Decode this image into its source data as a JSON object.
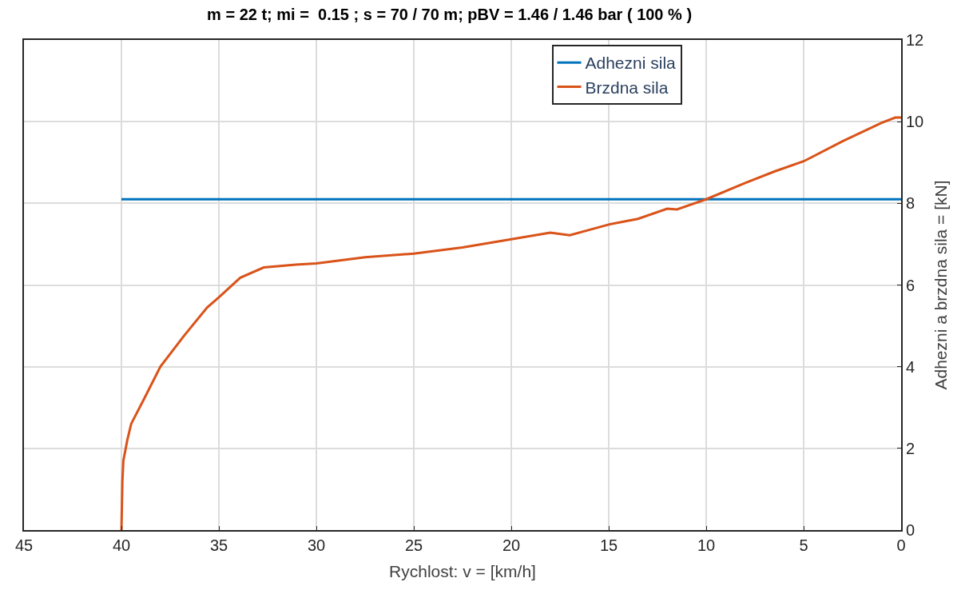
{
  "chart_data": {
    "type": "line",
    "title": "m = 22 t; mi =  0.15 ; s = 70 / 70 m; pBV = 1.46 / 1.46 bar ( 100 % )",
    "xlabel": "Rychlost: v = [km/h]",
    "ylabel": "Adhezni a brzdna sila = [kN]",
    "xlim": [
      45,
      0
    ],
    "xticks": [
      45,
      40,
      35,
      30,
      25,
      20,
      15,
      10,
      5,
      0
    ],
    "ylim": [
      0,
      12
    ],
    "yticks": [
      0,
      2,
      4,
      6,
      8,
      10,
      12
    ],
    "grid": true,
    "legend": "top right",
    "line_style": "solid",
    "marker": "none",
    "series": [
      {
        "name": "Adhezni sila",
        "color": "#0072bd",
        "x": [
          40,
          0
        ],
        "values": [
          8.1,
          8.1
        ]
      },
      {
        "name": "Brzdna sila",
        "color": "#d95319",
        "x": [
          40,
          39.95,
          39.9,
          39.7,
          39.5,
          38.85,
          38.0,
          36.8,
          35.6,
          35.0,
          33.9,
          32.7,
          31.05,
          30,
          27.5,
          25,
          22.5,
          20,
          18,
          17,
          15,
          13.5,
          12,
          11.5,
          10,
          8,
          6.5,
          5,
          3,
          1,
          0.3,
          0
        ],
        "values": [
          0,
          1.2,
          1.7,
          2.2,
          2.6,
          3.2,
          4.0,
          4.75,
          5.45,
          5.7,
          6.18,
          6.43,
          6.5,
          6.53,
          6.68,
          6.77,
          6.92,
          7.12,
          7.28,
          7.22,
          7.48,
          7.62,
          7.87,
          7.85,
          8.1,
          8.5,
          8.78,
          9.03,
          9.52,
          9.97,
          10.1,
          10.1
        ]
      }
    ]
  }
}
